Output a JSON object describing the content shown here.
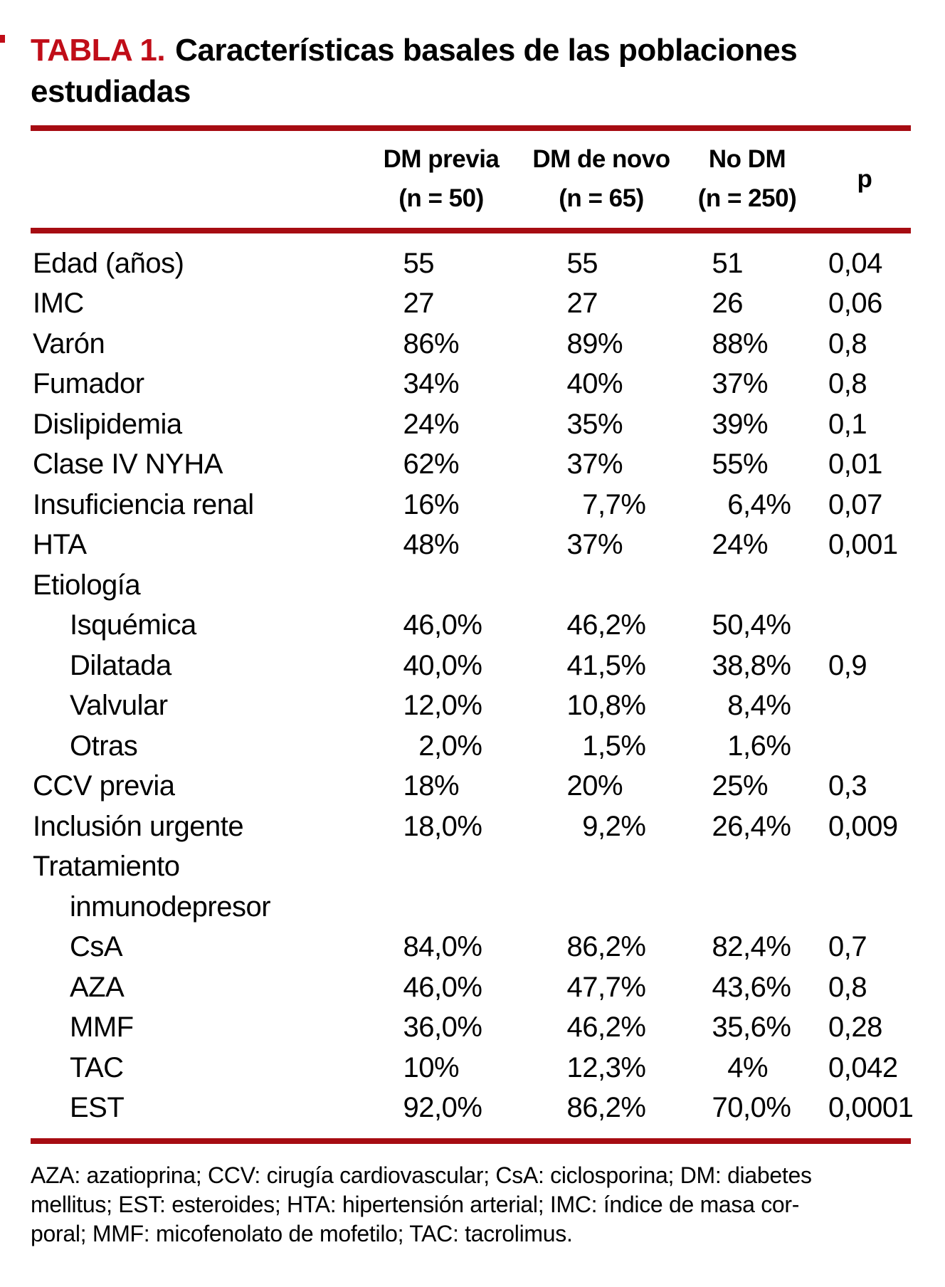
{
  "title": {
    "label": "TABLA 1.",
    "text": "Características basales de las poblaciones estudiadas"
  },
  "columns": [
    {
      "line1": "DM previa",
      "line2": "(n = 50)"
    },
    {
      "line1": "DM de novo",
      "line2": "(n = 65)"
    },
    {
      "line1": "No DM",
      "line2": "(n = 250)"
    },
    {
      "line1": "p",
      "line2": ""
    }
  ],
  "rows": [
    {
      "label": "Edad (años)",
      "v1": "55",
      "v2": "55",
      "v3": "51",
      "p": "0,04"
    },
    {
      "label": "IMC",
      "v1": "27",
      "v2": "27",
      "v3": "26",
      "p": "0,06"
    },
    {
      "label": "Varón",
      "v1": "86%",
      "v2": "89%",
      "v3": "88%",
      "p": "0,8"
    },
    {
      "label": "Fumador",
      "v1": "34%",
      "v2": "40%",
      "v3": "37%",
      "p": "0,8"
    },
    {
      "label": "Dislipidemia",
      "v1": "24%",
      "v2": "35%",
      "v3": "39%",
      "p": "0,1"
    },
    {
      "label": "Clase IV NYHA",
      "v1": "62%",
      "v2": "37%",
      "v3": "55%",
      "p": "0,01"
    },
    {
      "label": "Insuficiencia renal",
      "v1": "16%",
      "v2": "7,7%",
      "v3": "6,4%",
      "p": "0,07"
    },
    {
      "label": "HTA",
      "v1": "48%",
      "v2": "37%",
      "v3": "24%",
      "p": "0,001"
    },
    {
      "label": "Etiología",
      "v1": "",
      "v2": "",
      "v3": "",
      "p": ""
    },
    {
      "label": "Isquémica",
      "v1": "46,0%",
      "v2": "46,2%",
      "v3": "50,4%",
      "p": ""
    },
    {
      "label": "Dilatada",
      "v1": "40,0%",
      "v2": "41,5%",
      "v3": "38,8%",
      "p": "0,9"
    },
    {
      "label": "Valvular",
      "v1": "12,0%",
      "v2": "10,8%",
      "v3": "8,4%",
      "p": ""
    },
    {
      "label": "Otras",
      "v1": "2,0%",
      "v2": "1,5%",
      "v3": "1,6%",
      "p": ""
    },
    {
      "label": "CCV previa",
      "v1": "18%",
      "v2": "20%",
      "v3": "25%",
      "p": "0,3"
    },
    {
      "label": "Inclusión urgente",
      "v1": "18,0%",
      "v2": "9,2%",
      "v3": "26,4%",
      "p": "0,009"
    },
    {
      "label": "Tratamiento",
      "v1": "",
      "v2": "",
      "v3": "",
      "p": ""
    },
    {
      "label": "inmunodepresor",
      "v1": "",
      "v2": "",
      "v3": "",
      "p": ""
    },
    {
      "label": "CsA",
      "v1": "84,0%",
      "v2": "86,2%",
      "v3": "82,4%",
      "p": "0,7"
    },
    {
      "label": "AZA",
      "v1": "46,0%",
      "v2": "47,7%",
      "v3": "43,6%",
      "p": "0,8"
    },
    {
      "label": "MMF",
      "v1": "36,0%",
      "v2": "46,2%",
      "v3": "35,6%",
      "p": "0,28"
    },
    {
      "label": "TAC",
      "v1": "10%",
      "v2": "12,3%",
      "v3": "4%",
      "p": "0,042"
    },
    {
      "label": "EST",
      "v1": "92,0%",
      "v2": "86,2%",
      "v3": "70,0%",
      "p": "0,0001"
    }
  ],
  "footnote": {
    "lines": [
      "AZA: azatioprina; CCV: cirugía cardiovascular; CsA: ciclosporina; DM: diabetes",
      "mellitus; EST: esteroides; HTA: hipertensión arterial; IMC: índice de masa cor-",
      "poral; MMF: micofenolato de mofetilo; TAC: tacrolimus."
    ]
  },
  "colors": {
    "title_red": "#c00d18",
    "rule_red": "#a60c12"
  }
}
